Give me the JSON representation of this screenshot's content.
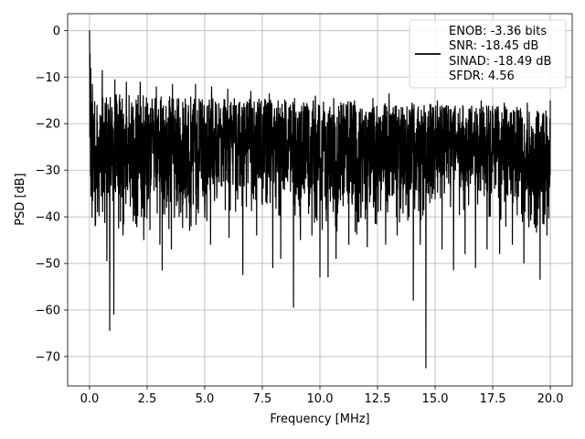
{
  "chart_data": {
    "type": "line",
    "title": "",
    "xlabel": "Frequency [MHz]",
    "ylabel": "PSD [dB]",
    "xlim": [
      -0.95,
      20.95
    ],
    "ylim": [
      -76.3,
      3.6
    ],
    "grid": true,
    "legend_position": "top-right",
    "xticks": [
      0.0,
      2.5,
      5.0,
      7.5,
      10.0,
      12.5,
      15.0,
      17.5,
      20.0
    ],
    "xtick_labels": [
      "0.0",
      "2.5",
      "5.0",
      "7.5",
      "10.0",
      "12.5",
      "15.0",
      "17.5",
      "20.0"
    ],
    "yticks": [
      0,
      -10,
      -20,
      -30,
      -40,
      -50,
      -60,
      -70
    ],
    "ytick_labels": [
      "0",
      "−10",
      "−20",
      "−30",
      "−40",
      "−50",
      "−60",
      "−70"
    ],
    "legend_lines": [
      "ENOB: -3.36 bits",
      "SNR: -18.45 dB",
      "SINAD: -18.49 dB",
      "SFDR: 4.56"
    ],
    "series_color": "#000000",
    "grid_color": "#b0b0b0",
    "peak_value": 0,
    "x_range": [
      0,
      20
    ],
    "dips": [
      [
        0.05,
        -47.5
      ],
      [
        0.35,
        -39
      ],
      [
        0.55,
        -38.5
      ],
      [
        0.75,
        -49.5
      ],
      [
        0.88,
        -64.5
      ],
      [
        1.05,
        -61
      ],
      [
        1.45,
        -44
      ],
      [
        1.9,
        -41
      ],
      [
        2.35,
        -45
      ],
      [
        3.05,
        -46
      ],
      [
        3.15,
        -51.5
      ],
      [
        3.55,
        -47
      ],
      [
        4.35,
        -43
      ],
      [
        5.25,
        -46
      ],
      [
        6.05,
        -44.5
      ],
      [
        6.65,
        -52.5
      ],
      [
        7.25,
        -44
      ],
      [
        7.95,
        -51
      ],
      [
        8.3,
        -49
      ],
      [
        8.85,
        -59.5
      ],
      [
        9.15,
        -45
      ],
      [
        9.65,
        -44
      ],
      [
        10.0,
        -53
      ],
      [
        10.35,
        -53
      ],
      [
        10.7,
        -49
      ],
      [
        11.25,
        -46
      ],
      [
        12.05,
        -46.5
      ],
      [
        12.85,
        -46
      ],
      [
        13.35,
        -44
      ],
      [
        14.05,
        -58
      ],
      [
        14.35,
        -46
      ],
      [
        14.6,
        -72.5
      ],
      [
        15.3,
        -47
      ],
      [
        15.8,
        -51.5
      ],
      [
        16.3,
        -48
      ],
      [
        16.75,
        -51
      ],
      [
        17.25,
        -47
      ],
      [
        17.8,
        -48
      ],
      [
        18.35,
        -46
      ],
      [
        18.85,
        -50
      ],
      [
        19.55,
        -53.5
      ],
      [
        19.85,
        -44
      ]
    ],
    "spikes": [
      [
        0.0,
        0
      ],
      [
        0.02,
        -5
      ],
      [
        0.05,
        -8
      ],
      [
        0.12,
        -11.5
      ],
      [
        0.55,
        -8.5
      ],
      [
        1.1,
        -10.5
      ],
      [
        1.6,
        -11
      ],
      [
        2.2,
        -11
      ],
      [
        2.9,
        -12
      ],
      [
        3.6,
        -11.5
      ],
      [
        4.6,
        -11.5
      ],
      [
        5.3,
        -12
      ],
      [
        6.0,
        -12.5
      ],
      [
        7.0,
        -13
      ],
      [
        7.8,
        -13.5
      ],
      [
        8.9,
        -14.5
      ],
      [
        9.8,
        -14
      ],
      [
        10.6,
        -14.5
      ],
      [
        11.5,
        -15
      ],
      [
        12.3,
        -14.5
      ],
      [
        13.0,
        -13.5
      ],
      [
        14.0,
        -15.5
      ],
      [
        15.1,
        -15
      ],
      [
        16.2,
        -16
      ],
      [
        17.0,
        -15
      ],
      [
        18.0,
        -15.5
      ],
      [
        19.0,
        -15.5
      ],
      [
        20.0,
        -15
      ]
    ]
  }
}
